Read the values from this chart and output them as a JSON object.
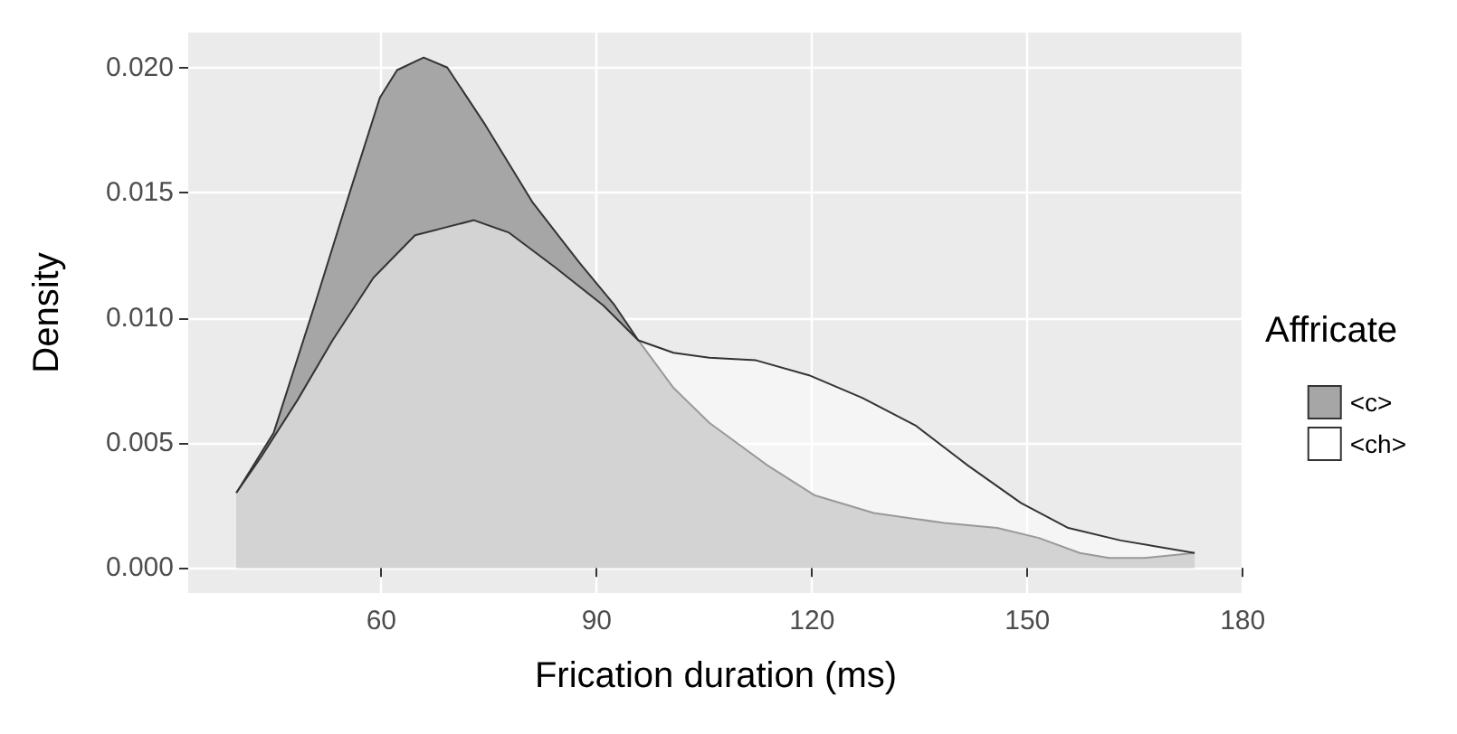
{
  "chart_data": {
    "type": "area",
    "xlabel": "Frication duration (ms)",
    "ylabel": "Density",
    "legend_title": "Affricate",
    "legend": "right",
    "grid": true,
    "xlim": [
      33.1,
      180.1
    ],
    "xticks": [
      60,
      90,
      120,
      150,
      180
    ],
    "ylim": [
      -0.001,
      0.0214
    ],
    "yticks": [
      {
        "value": 0,
        "label": "0.000"
      },
      {
        "value": 0.005,
        "label": "0.005"
      },
      {
        "value": 0.01,
        "label": "0.010"
      },
      {
        "value": 0.015,
        "label": "0.015"
      },
      {
        "value": 0.02,
        "label": "0.020"
      }
    ],
    "series": [
      {
        "name": "<c>",
        "color": "#a6a6a6",
        "x": [
          39.8,
          45,
          50.7,
          55.7,
          59.8,
          62.2,
          65.9,
          69.2,
          74.5,
          81.1,
          87.6,
          92.5,
          95.8,
          100.7,
          105.7,
          113.8,
          120.4,
          128.6,
          138.4,
          145.8,
          151.6,
          157.3,
          161.4,
          166.3,
          173.3
        ],
        "values": [
          0.003,
          0.0054,
          0.0105,
          0.0151,
          0.0188,
          0.0199,
          0.0204,
          0.02,
          0.0177,
          0.0146,
          0.0122,
          0.0105,
          0.0091,
          0.0072,
          0.0058,
          0.0041,
          0.0029,
          0.0022,
          0.0018,
          0.0016,
          0.0012,
          0.0006,
          0.0004,
          0.0004,
          0.0006
        ]
      },
      {
        "name": "<ch>",
        "color": "#ffffff",
        "x": [
          39.8,
          43.4,
          48.3,
          53.2,
          58.9,
          64.7,
          68.8,
          72.9,
          77.8,
          84.3,
          90.9,
          95.8,
          100.7,
          105.7,
          112.2,
          119.6,
          127,
          134.4,
          141.7,
          149.1,
          155.7,
          163,
          173.3
        ],
        "values": [
          0.003,
          0.0045,
          0.0067,
          0.0091,
          0.0116,
          0.0133,
          0.0136,
          0.0139,
          0.0134,
          0.012,
          0.0105,
          0.0091,
          0.0086,
          0.0084,
          0.0083,
          0.0077,
          0.0068,
          0.0057,
          0.0041,
          0.0026,
          0.0016,
          0.0011,
          0.0006
        ]
      }
    ]
  }
}
